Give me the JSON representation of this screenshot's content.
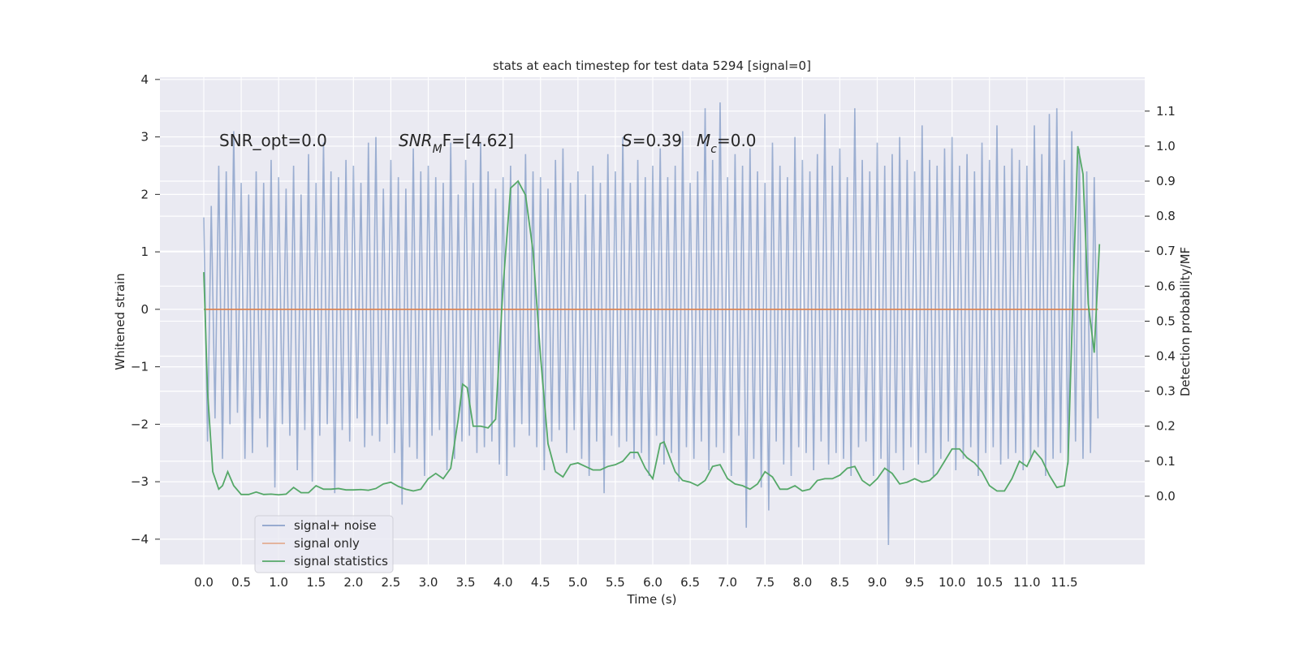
{
  "chart_data": {
    "type": "line",
    "title": "stats at each timestep for test data 5294 [signal=0]",
    "xlabel": "Time (s)",
    "ylabel": "Whitened strain",
    "y2label": "Detection probability/MF",
    "annotations": [
      [
        "SNR_opt=0.0"
      ],
      [
        "SNR",
        "M",
        "F=[4.62]"
      ],
      [
        "S",
        "=0.39"
      ],
      [
        "M",
        "c",
        "=0.0"
      ]
    ],
    "xlim": [
      -0.586,
      12.575
    ],
    "ylim": [
      -4.44,
      4.04
    ],
    "y2lim": [
      -0.195,
      1.197
    ],
    "xticks": [
      {
        "value": 0,
        "label": "0.0"
      },
      0.5,
      {
        "value": 1,
        "label": "1.0"
      },
      1.5,
      {
        "value": 2,
        "label": "2.0"
      },
      2.5,
      {
        "value": 3,
        "label": "3.0"
      },
      3.5,
      {
        "value": 4,
        "label": "4.0"
      },
      4.5,
      {
        "value": 5,
        "label": "5.0"
      },
      5.5,
      {
        "value": 6,
        "label": "6.0"
      },
      6.5,
      {
        "value": 7,
        "label": "7.0"
      },
      7.5,
      {
        "value": 8,
        "label": "8.0"
      },
      8.5,
      {
        "value": 9,
        "label": "9.0"
      },
      9.5,
      {
        "value": 10,
        "label": "10.0"
      },
      10.5,
      {
        "value": 11,
        "label": "11.0"
      },
      11.5
    ],
    "yticks": [
      {
        "value": -4,
        "label": "−4"
      },
      {
        "value": -3,
        "label": "−3"
      },
      {
        "value": -2,
        "label": "−2"
      },
      {
        "value": -1,
        "label": "−1"
      },
      0,
      1,
      2,
      3,
      4
    ],
    "y2ticks": [
      {
        "value": 0,
        "label": "0.0"
      },
      0.1,
      0.2,
      0.3,
      0.4,
      0.5,
      0.6,
      0.7,
      0.8,
      0.9,
      {
        "value": 1,
        "label": "1.0"
      },
      1.1
    ],
    "grid": true,
    "legend": "lower left",
    "series": [
      {
        "name": "signal+ noise",
        "color": "#4c72b0",
        "x": [
          0,
          0.05,
          0.1,
          0.15,
          0.2,
          0.25,
          0.3,
          0.35,
          0.4,
          0.45,
          0.5,
          0.55,
          0.6,
          0.65,
          0.7,
          0.75,
          0.8,
          0.85,
          0.9,
          0.95,
          1,
          1.05,
          1.1,
          1.15,
          1.2,
          1.25,
          1.3,
          1.35,
          1.4,
          1.45,
          1.5,
          1.55,
          1.6,
          1.65,
          1.7,
          1.75,
          1.8,
          1.85,
          1.9,
          1.95,
          2,
          2.05,
          2.1,
          2.15,
          2.2,
          2.25,
          2.3,
          2.35,
          2.4,
          2.45,
          2.5,
          2.55,
          2.6,
          2.65,
          2.7,
          2.75,
          2.8,
          2.85,
          2.9,
          2.95,
          3,
          3.05,
          3.1,
          3.15,
          3.2,
          3.25,
          3.3,
          3.35,
          3.4,
          3.45,
          3.5,
          3.55,
          3.6,
          3.65,
          3.7,
          3.75,
          3.8,
          3.85,
          3.9,
          3.95,
          4,
          4.05,
          4.1,
          4.15,
          4.2,
          4.25,
          4.3,
          4.35,
          4.4,
          4.45,
          4.5,
          4.55,
          4.6,
          4.65,
          4.7,
          4.75,
          4.8,
          4.85,
          4.9,
          4.95,
          5,
          5.05,
          5.1,
          5.15,
          5.2,
          5.25,
          5.3,
          5.35,
          5.4,
          5.45,
          5.5,
          5.55,
          5.6,
          5.65,
          5.7,
          5.75,
          5.8,
          5.85,
          5.9,
          5.95,
          6,
          6.05,
          6.1,
          6.15,
          6.2,
          6.25,
          6.3,
          6.35,
          6.4,
          6.45,
          6.5,
          6.55,
          6.6,
          6.65,
          6.7,
          6.75,
          6.8,
          6.85,
          6.9,
          6.95,
          7,
          7.05,
          7.1,
          7.15,
          7.2,
          7.25,
          7.3,
          7.35,
          7.4,
          7.45,
          7.5,
          7.55,
          7.6,
          7.65,
          7.7,
          7.75,
          7.8,
          7.85,
          7.9,
          7.95,
          8,
          8.05,
          8.1,
          8.15,
          8.2,
          8.25,
          8.3,
          8.35,
          8.4,
          8.45,
          8.5,
          8.55,
          8.6,
          8.65,
          8.7,
          8.75,
          8.8,
          8.85,
          8.9,
          8.95,
          9,
          9.05,
          9.1,
          9.15,
          9.2,
          9.25,
          9.3,
          9.35,
          9.4,
          9.45,
          9.5,
          9.55,
          9.6,
          9.65,
          9.7,
          9.75,
          9.8,
          9.85,
          9.9,
          9.95,
          10,
          10.05,
          10.1,
          10.15,
          10.2,
          10.25,
          10.3,
          10.35,
          10.4,
          10.45,
          10.5,
          10.55,
          10.6,
          10.65,
          10.7,
          10.75,
          10.8,
          10.85,
          10.9,
          10.95,
          11,
          11.05,
          11.1,
          11.15,
          11.2,
          11.25,
          11.3,
          11.35,
          11.4,
          11.45,
          11.5,
          11.55,
          11.6,
          11.65,
          11.7,
          11.75,
          11.8,
          11.85,
          11.9,
          11.95
        ],
        "values": [
          1.6,
          -2.3,
          1.8,
          -1.9,
          2.5,
          -2.6,
          2.4,
          -2.0,
          3.1,
          -1.8,
          2.2,
          -2.6,
          2.0,
          -2.5,
          2.4,
          -1.9,
          2.2,
          -2.4,
          2.6,
          -3.1,
          2.3,
          -2.0,
          2.1,
          -2.2,
          2.5,
          -2.8,
          2.0,
          -2.1,
          2.7,
          -3.0,
          2.2,
          -2.2,
          2.9,
          -2.0,
          2.4,
          -3.2,
          2.3,
          -2.1,
          2.6,
          -2.3,
          2.5,
          -1.9,
          2.2,
          -2.4,
          2.9,
          -2.2,
          3.0,
          -2.3,
          2.1,
          -2.0,
          2.6,
          -2.5,
          2.3,
          -3.4,
          2.1,
          -2.4,
          2.8,
          -2.6,
          2.4,
          -2.9,
          2.5,
          -2.2,
          2.3,
          -2.1,
          2.2,
          -2.8,
          2.9,
          -2.6,
          2.0,
          -2.3,
          2.6,
          -2.2,
          2.2,
          -2.5,
          2.9,
          -2.4,
          2.4,
          -2.3,
          2.1,
          -2.7,
          2.3,
          -2.9,
          2.5,
          -2.4,
          2.2,
          -2.0,
          2.7,
          -2.2,
          2.4,
          -2.4,
          2.3,
          -2.8,
          2.1,
          -2.3,
          2.6,
          -2.1,
          2.8,
          -2.5,
          2.2,
          -2.1,
          2.4,
          -2.6,
          2.0,
          -2.9,
          2.5,
          -2.3,
          2.2,
          -3.2,
          2.7,
          -2.2,
          2.4,
          -2.4,
          3.0,
          -2.3,
          2.2,
          -2.6,
          2.6,
          -2.5,
          2.3,
          -2.9,
          2.5,
          -2.2,
          2.8,
          -2.7,
          2.3,
          -2.5,
          2.5,
          -3.0,
          3.1,
          -2.4,
          2.2,
          -2.6,
          2.4,
          -2.3,
          3.5,
          -2.8,
          2.6,
          -2.4,
          3.6,
          -2.5,
          2.3,
          -2.9,
          2.7,
          -2.2,
          2.5,
          -3.8,
          2.8,
          -2.6,
          2.4,
          -3.1,
          2.2,
          -3.5,
          2.9,
          -2.3,
          2.5,
          -2.7,
          2.3,
          -2.9,
          3.0,
          -2.4,
          2.6,
          -2.5,
          2.4,
          -2.8,
          2.7,
          -2.3,
          3.4,
          -2.7,
          2.5,
          -2.5,
          2.8,
          -2.6,
          2.3,
          -2.9,
          3.5,
          -2.4,
          2.6,
          -2.3,
          2.4,
          -2.9,
          2.9,
          -2.6,
          2.5,
          -4.1,
          2.7,
          -2.5,
          3.0,
          -2.8,
          2.6,
          -2.4,
          2.4,
          -2.7,
          3.2,
          -2.5,
          2.6,
          -2.9,
          2.5,
          -2.6,
          2.8,
          -2.3,
          3.0,
          -2.8,
          2.5,
          -2.6,
          2.7,
          -2.4,
          2.4,
          -2.9,
          2.9,
          -2.5,
          2.6,
          -2.4,
          3.2,
          -2.7,
          2.5,
          -2.6,
          2.8,
          -2.5,
          2.6,
          -2.8,
          2.5,
          -2.6,
          3.2,
          -2.4,
          2.7,
          -2.9,
          3.4,
          -2.6,
          3.5,
          -2.5,
          2.6,
          -2.7,
          3.1,
          -2.3,
          2.8,
          -2.6,
          2.4,
          -2.5,
          2.3,
          -1.9
        ]
      },
      {
        "name": "signal only",
        "color": "#dd8452",
        "x": [
          0,
          11.95
        ],
        "values": [
          0,
          0
        ]
      },
      {
        "name": "signal statistics",
        "color": "#55a868",
        "axis": "y2",
        "x": [
          0,
          0.05,
          0.12,
          0.2,
          0.25,
          0.32,
          0.4,
          0.5,
          0.6,
          0.7,
          0.8,
          0.9,
          1.0,
          1.1,
          1.2,
          1.3,
          1.4,
          1.5,
          1.6,
          1.7,
          1.8,
          1.9,
          2.0,
          2.1,
          2.2,
          2.3,
          2.4,
          2.5,
          2.6,
          2.7,
          2.8,
          2.9,
          3.0,
          3.1,
          3.2,
          3.3,
          3.4,
          3.46,
          3.52,
          3.6,
          3.7,
          3.8,
          3.9,
          4.0,
          4.1,
          4.2,
          4.3,
          4.4,
          4.5,
          4.6,
          4.7,
          4.8,
          4.9,
          5.0,
          5.1,
          5.2,
          5.3,
          5.4,
          5.5,
          5.6,
          5.7,
          5.8,
          5.9,
          6.0,
          6.1,
          6.15,
          6.3,
          6.4,
          6.5,
          6.6,
          6.7,
          6.8,
          6.9,
          7.0,
          7.1,
          7.2,
          7.3,
          7.4,
          7.5,
          7.6,
          7.7,
          7.8,
          7.9,
          8.0,
          8.1,
          8.2,
          8.3,
          8.4,
          8.5,
          8.6,
          8.7,
          8.8,
          8.9,
          9.0,
          9.1,
          9.2,
          9.3,
          9.4,
          9.5,
          9.6,
          9.7,
          9.8,
          9.9,
          10.0,
          10.1,
          10.2,
          10.3,
          10.4,
          10.5,
          10.6,
          10.7,
          10.8,
          10.9,
          11.0,
          11.1,
          11.2,
          11.3,
          11.4,
          11.5,
          11.55,
          11.62,
          11.68,
          11.75,
          11.82,
          11.9,
          11.97
        ],
        "values": [
          0.64,
          0.3,
          0.07,
          0.02,
          0.03,
          0.07,
          0.03,
          0.005,
          0.005,
          0.012,
          0.005,
          0.006,
          0.004,
          0.006,
          0.025,
          0.01,
          0.01,
          0.03,
          0.02,
          0.02,
          0.022,
          0.018,
          0.018,
          0.019,
          0.017,
          0.022,
          0.035,
          0.04,
          0.028,
          0.02,
          0.015,
          0.02,
          0.05,
          0.065,
          0.05,
          0.08,
          0.22,
          0.32,
          0.31,
          0.2,
          0.2,
          0.195,
          0.22,
          0.6,
          0.88,
          0.9,
          0.86,
          0.7,
          0.4,
          0.15,
          0.07,
          0.055,
          0.09,
          0.095,
          0.085,
          0.075,
          0.075,
          0.085,
          0.09,
          0.1,
          0.125,
          0.125,
          0.08,
          0.05,
          0.15,
          0.155,
          0.07,
          0.045,
          0.04,
          0.03,
          0.045,
          0.085,
          0.09,
          0.05,
          0.035,
          0.03,
          0.02,
          0.035,
          0.07,
          0.055,
          0.02,
          0.02,
          0.03,
          0.015,
          0.02,
          0.045,
          0.05,
          0.05,
          0.06,
          0.08,
          0.085,
          0.045,
          0.03,
          0.05,
          0.08,
          0.065,
          0.035,
          0.04,
          0.05,
          0.04,
          0.045,
          0.065,
          0.1,
          0.135,
          0.135,
          0.11,
          0.095,
          0.07,
          0.03,
          0.015,
          0.015,
          0.05,
          0.1,
          0.085,
          0.13,
          0.105,
          0.06,
          0.025,
          0.03,
          0.1,
          0.6,
          1.0,
          0.92,
          0.55,
          0.41,
          0.72
        ]
      }
    ]
  }
}
